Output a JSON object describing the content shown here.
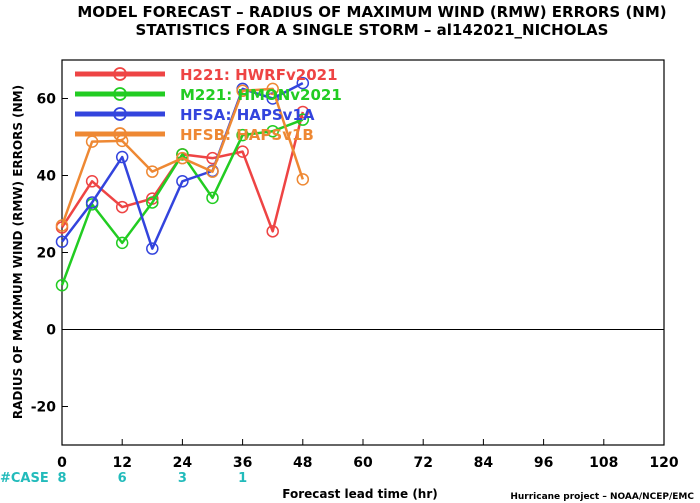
{
  "chart_data": {
    "type": "line",
    "title": "MODEL FORECAST – RADIUS OF MAXIMUM WIND (RMW) ERRORS (NM)",
    "subtitle": "STATISTICS FOR A SINGLE STORM – al142021_NICHOLAS",
    "xlabel": "Forecast lead time (hr)",
    "ylabel": "RADIUS OF MAXIMUM WIND (RMW) ERRORS (NM)",
    "xlim": [
      0,
      120
    ],
    "ylim": [
      -30,
      70
    ],
    "xticks": [
      "0",
      "12",
      "24",
      "36",
      "48",
      "60",
      "72",
      "84",
      "96",
      "108",
      "120"
    ],
    "yticks": [
      "-20",
      "0",
      "20",
      "40",
      "60"
    ],
    "zero_line": true,
    "series": [
      {
        "name": "H221: HWRFv2021",
        "color": "#ee4444",
        "x": [
          0,
          6,
          12,
          18,
          24,
          30,
          36,
          42,
          48
        ],
        "y": [
          26.5,
          38.5,
          31.8,
          34,
          45.5,
          44.5,
          46.2,
          25.5,
          56.5
        ]
      },
      {
        "name": "M221: HMONv2021",
        "color": "#22cc22",
        "x": [
          0,
          6,
          12,
          18,
          24,
          30,
          36,
          42,
          48
        ],
        "y": [
          11.5,
          32.5,
          22.5,
          33,
          45.5,
          34.2,
          50.5,
          51.5,
          54.5
        ]
      },
      {
        "name": "HFSA: HAPSv1A",
        "color": "#3344dd",
        "x": [
          0,
          6,
          12,
          18,
          24,
          30,
          36,
          42,
          48
        ],
        "y": [
          22.8,
          33,
          44.8,
          21,
          38.5,
          41.2,
          62.5,
          60,
          64
        ]
      },
      {
        "name": "HFSB: HAPSv1B",
        "color": "#ee8833",
        "x": [
          0,
          6,
          12,
          18,
          24,
          30,
          36,
          42,
          48
        ],
        "y": [
          27,
          48.8,
          49,
          41,
          44.5,
          41,
          62,
          62.5,
          39
        ]
      }
    ],
    "legend_position": "top-left",
    "case_label": "#CASE",
    "case_counts": [
      {
        "x": 0,
        "label": "8"
      },
      {
        "x": 12,
        "label": "6"
      },
      {
        "x": 24,
        "label": "3"
      },
      {
        "x": 36,
        "label": "1"
      }
    ],
    "case_color": "#22bbbb",
    "credit": "Hurricane project – NOAA/NCEP/EMC"
  }
}
